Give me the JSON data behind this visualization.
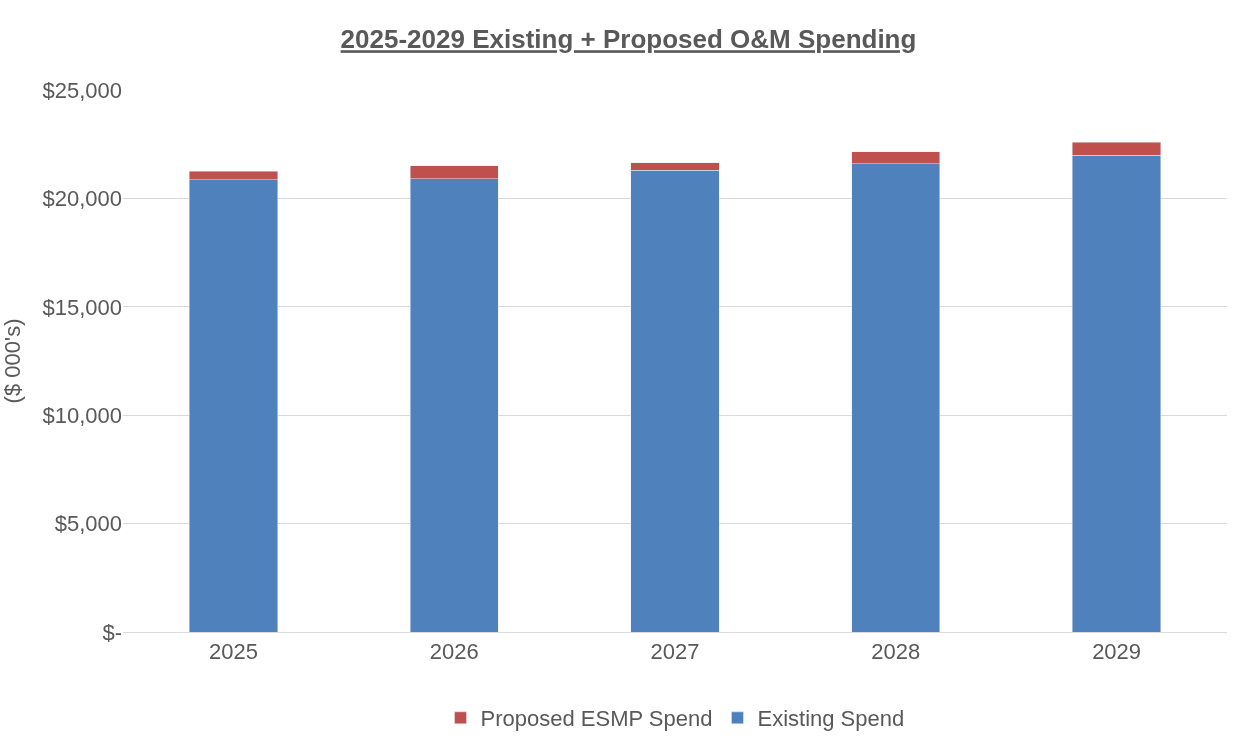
{
  "chart_data": {
    "type": "bar",
    "title": "2025-2029 Existing + Proposed O&M Spending",
    "ylabel": "($ 000's)",
    "categories": [
      "2025",
      "2026",
      "2027",
      "2028",
      "2029"
    ],
    "series": [
      {
        "name": "Existing Spend",
        "color": "#4f81bd",
        "values": [
          20850,
          20900,
          21300,
          21600,
          22000
        ]
      },
      {
        "name": "Proposed ESMP Spend",
        "color": "#c0504d",
        "values": [
          400,
          600,
          350,
          550,
          600
        ]
      }
    ],
    "stacked": true,
    "ylim": [
      0,
      25000
    ],
    "yticks": [
      {
        "value": 0,
        "label": "$-"
      },
      {
        "value": 5000,
        "label": "$5,000"
      },
      {
        "value": 10000,
        "label": "$10,000"
      },
      {
        "value": 15000,
        "label": "$15,000"
      },
      {
        "value": 20000,
        "label": "$20,000"
      },
      {
        "value": 25000,
        "label": "$25,000"
      }
    ],
    "grid": "y",
    "legend": "bottom"
  }
}
